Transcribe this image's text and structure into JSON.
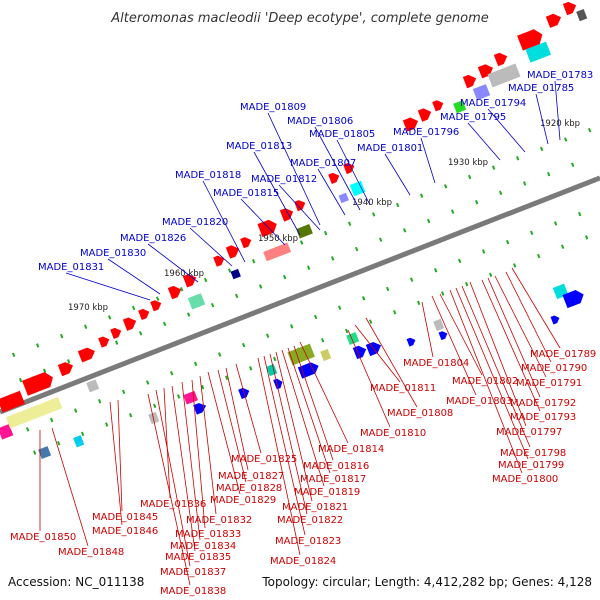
{
  "title": "Alteromonas macleodii 'Deep ecotype', complete genome",
  "footer": {
    "accession": "Accession: NC_011138",
    "topology": "Topology: circular; Length: 4,412,282 bp; Genes: 4,128"
  },
  "colors": {
    "upper_labels": "#0000cc",
    "lower_labels": "#cc0000",
    "backbone": "#7a7a7a",
    "forward_gene": "#ff0000",
    "reverse_gene": "#0000ff"
  },
  "kbp_marks": [
    {
      "label": "1920 kbp",
      "x": 1920
    },
    {
      "label": "1930 kbp",
      "x": 1930
    },
    {
      "label": "1940 kbp",
      "x": 1940
    },
    {
      "label": "1950 kbp",
      "x": 1950
    },
    {
      "label": "1960 kbp",
      "x": 1960
    },
    {
      "label": "1970 kbp",
      "x": 1970
    }
  ],
  "upper_labels": [
    "MADE_01783",
    "MADE_01785",
    "MADE_01794",
    "MADE_01795",
    "MADE_01796",
    "MADE_01801",
    "MADE_01805",
    "MADE_01806",
    "MADE_01807",
    "MADE_01809",
    "MADE_01812",
    "MADE_01813",
    "MADE_01815",
    "MADE_01818",
    "MADE_01820",
    "MADE_01826",
    "MADE_01830",
    "MADE_01831"
  ],
  "lower_labels": [
    "MADE_01789",
    "MADE_01790",
    "MADE_01791",
    "MADE_01792",
    "MADE_01793",
    "MADE_01797",
    "MADE_01798",
    "MADE_01799",
    "MADE_01800",
    "MADE_01802",
    "MADE_01803",
    "MADE_01804",
    "MADE_01808",
    "MADE_01810",
    "MADE_01811",
    "MADE_01814",
    "MADE_01816",
    "MADE_01817",
    "MADE_01819",
    "MADE_01821",
    "MADE_01822",
    "MADE_01823",
    "MADE_01824",
    "MADE_01825",
    "MADE_01827",
    "MADE_01828",
    "MADE_01829",
    "MADE_01832",
    "MADE_01833",
    "MADE_01834",
    "MADE_01835",
    "MADE_01836",
    "MADE_01837",
    "MADE_01838",
    "MADE_01845",
    "MADE_01846",
    "MADE_01848",
    "MADE_01850"
  ]
}
